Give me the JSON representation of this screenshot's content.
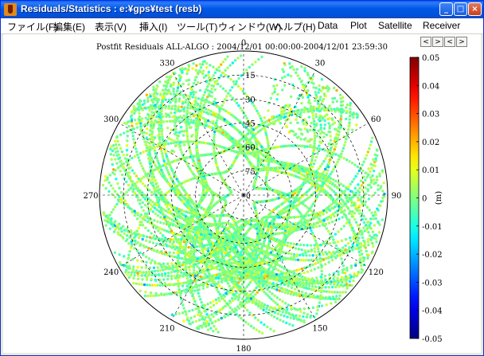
{
  "window": {
    "title": "Residuals/Statistics : e:¥gps¥test (resb)",
    "controls": {
      "minimize": "_",
      "maximize": "□",
      "close": "×"
    }
  },
  "menu": [
    {
      "label": "ファイル(F)",
      "accel": "F"
    },
    {
      "label": "編集(E)",
      "accel": "E"
    },
    {
      "label": "表示(V)",
      "accel": "V"
    },
    {
      "label": "挿入(I)",
      "accel": "I"
    },
    {
      "label": "ツール(T)",
      "accel": "T"
    },
    {
      "label": "ウィンドウ(W)",
      "accel": "W"
    },
    {
      "label": "ヘルプ(H)",
      "accel": "H"
    },
    {
      "label": "Data",
      "accel": "D"
    },
    {
      "label": "Plot",
      "accel": "P"
    },
    {
      "label": "Satellite",
      "accel": "S"
    },
    {
      "label": "Receiver",
      "accel": "R"
    }
  ],
  "nav_buttons": [
    "<",
    ">",
    "<",
    ">"
  ],
  "chart_data": {
    "type": "scatter",
    "projection": "polar",
    "title": "Postfit Residuals ALL-ALGO : 2004/12/01 00:00:00-2004/12/01 23:59:30",
    "azimuth_labels": [
      "0",
      "30",
      "60",
      "90",
      "120",
      "150",
      "180",
      "210",
      "240",
      "270",
      "300",
      "330"
    ],
    "elevation_labels": [
      "15",
      "30",
      "45",
      "60",
      "75"
    ],
    "elevation_rings": [
      0,
      15,
      30,
      45,
      60,
      75
    ],
    "center_label": "0",
    "grid": true,
    "colorbar": {
      "label": "(m)",
      "min": -0.05,
      "max": 0.05,
      "ticks": [
        "0.05",
        "0.04",
        "0.03",
        "0.02",
        "0.01",
        "0",
        "-0.01",
        "-0.02",
        "-0.03",
        "-0.04",
        "-0.05"
      ],
      "colormap": "jet"
    },
    "colors": {
      "dominant_point_color": "#88ee70",
      "grid": "#000000"
    }
  }
}
